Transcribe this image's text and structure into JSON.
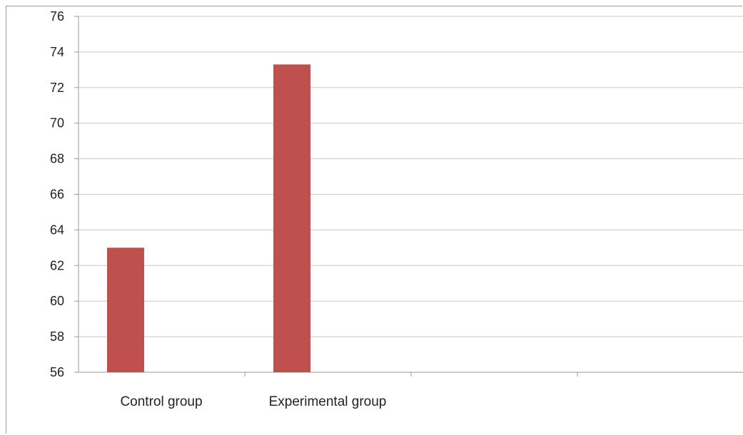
{
  "chart_data": {
    "type": "bar",
    "categories": [
      "Control group",
      "Experimental group",
      "",
      ""
    ],
    "values": [
      63,
      73.3,
      null,
      null
    ],
    "ylim": [
      56,
      76
    ],
    "yticks": [
      56,
      58,
      60,
      62,
      64,
      66,
      68,
      70,
      72,
      74,
      76
    ],
    "grid": true,
    "legend": "none",
    "bar_color": "#c0504d",
    "grid_color": "#c8c8c8",
    "axis_color": "#9a9a9a"
  }
}
